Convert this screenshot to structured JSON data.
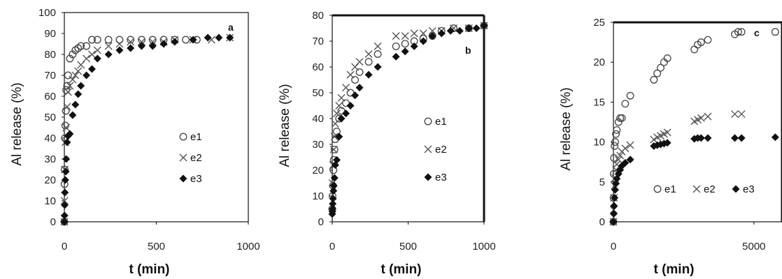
{
  "chart_data": [
    {
      "type": "scatter",
      "panel_label": "a",
      "xlabel": "t (min)",
      "ylabel": "Al release   (%)",
      "xlim": [
        0,
        1000
      ],
      "ylim": [
        0,
        100
      ],
      "xticks": [
        "0",
        "500",
        "1000"
      ],
      "yticks": [
        "0",
        "10",
        "20",
        "30",
        "40",
        "50",
        "60",
        "70",
        "80",
        "90",
        "100"
      ],
      "legend_position": "right-middle",
      "series": [
        {
          "name": "e1",
          "marker": "circle",
          "x": [
            0,
            1,
            2,
            3,
            5,
            8,
            10,
            15,
            20,
            30,
            45,
            60,
            75,
            90,
            120,
            150,
            180,
            240,
            300,
            360,
            420,
            480,
            540,
            600,
            660,
            720
          ],
          "y": [
            0,
            18,
            25,
            40,
            46,
            53,
            63,
            65,
            70,
            78,
            80,
            82,
            83,
            84,
            84,
            87,
            87,
            87,
            87,
            87,
            87,
            87,
            87,
            87,
            87,
            87
          ]
        },
        {
          "name": "e2",
          "marker": "x",
          "x": [
            0,
            1,
            2,
            5,
            10,
            15,
            20,
            30,
            45,
            60,
            75,
            90,
            120,
            150,
            180,
            240,
            300,
            360,
            420,
            480,
            540,
            600,
            700,
            800,
            900
          ],
          "y": [
            0,
            10,
            25,
            38,
            45,
            55,
            62,
            65,
            68,
            70,
            72,
            75,
            78,
            80,
            82,
            84,
            85,
            86,
            86,
            86,
            86,
            87,
            87,
            87,
            88
          ]
        },
        {
          "name": "e3",
          "marker": "diamond",
          "x": [
            0,
            1,
            2,
            3,
            5,
            8,
            10,
            15,
            20,
            30,
            45,
            60,
            75,
            90,
            120,
            150,
            180,
            240,
            300,
            360,
            420,
            480,
            540,
            600,
            700,
            780,
            840,
            900
          ],
          "y": [
            0,
            3,
            8,
            14,
            20,
            24,
            30,
            38,
            41,
            42,
            51,
            56,
            61,
            65,
            70,
            73,
            78,
            80,
            82,
            83,
            84,
            84,
            85,
            86,
            87,
            88,
            88,
            88
          ]
        }
      ]
    },
    {
      "type": "scatter",
      "panel_label": "b",
      "xlabel": "t (min)",
      "ylabel": "Al release   (%)",
      "xlim": [
        0,
        1000
      ],
      "ylim": [
        0,
        80
      ],
      "xticks": [
        "0",
        "500",
        "1000"
      ],
      "yticks": [
        "0",
        "10",
        "20",
        "30",
        "40",
        "50",
        "60",
        "70",
        "80"
      ],
      "legend_position": "right-middle",
      "series": [
        {
          "name": "e1",
          "marker": "circle",
          "x": [
            0,
            2,
            5,
            8,
            10,
            15,
            20,
            30,
            45,
            60,
            90,
            120,
            150,
            180,
            240,
            300,
            420,
            480,
            540,
            600,
            660,
            720,
            800,
            900,
            1000
          ],
          "y": [
            5,
            10,
            14,
            20,
            24,
            28,
            32,
            35,
            40,
            43,
            46,
            50,
            55,
            58,
            62,
            65,
            68,
            69,
            70,
            71,
            72,
            74,
            75,
            75,
            76
          ]
        },
        {
          "name": "e2",
          "marker": "x",
          "x": [
            2,
            5,
            10,
            15,
            20,
            30,
            45,
            60,
            90,
            120,
            150,
            180,
            240,
            300,
            420,
            480,
            540,
            600,
            660,
            720,
            800,
            900,
            1000
          ],
          "y": [
            15,
            22,
            28,
            33,
            38,
            42,
            45,
            48,
            52,
            57,
            60,
            62,
            65,
            68,
            72,
            72,
            73,
            73,
            74,
            74,
            75,
            75,
            76
          ]
        },
        {
          "name": "e3",
          "marker": "diamond",
          "x": [
            0,
            1,
            2,
            3,
            5,
            8,
            10,
            15,
            20,
            30,
            45,
            60,
            90,
            120,
            150,
            180,
            240,
            300,
            420,
            480,
            540,
            600,
            660,
            720,
            780,
            840,
            900,
            950,
            1000
          ],
          "y": [
            3,
            4,
            5,
            7,
            9,
            12,
            14,
            17,
            22,
            24,
            33,
            40,
            42,
            45,
            49,
            52,
            57,
            60,
            64,
            66,
            68,
            70,
            72,
            73,
            74,
            74,
            75,
            75,
            76
          ]
        }
      ]
    },
    {
      "type": "scatter",
      "panel_label": "c",
      "xlabel": "t (min)",
      "ylabel": "Al release   (%)",
      "xlim": [
        0,
        6000
      ],
      "ylim": [
        0,
        25
      ],
      "xticks": [
        "0",
        "5000"
      ],
      "yticks": [
        "0",
        "5",
        "10",
        "15",
        "20",
        "25"
      ],
      "legend_position": "bottom-right",
      "series": [
        {
          "name": "e1",
          "marker": "circle",
          "x": [
            0,
            5,
            10,
            20,
            40,
            60,
            90,
            120,
            180,
            240,
            300,
            420,
            600,
            1440,
            1560,
            1680,
            1800,
            1920,
            2880,
            3000,
            3120,
            3360,
            4320,
            4440,
            4560,
            5760,
            6000
          ],
          "y": [
            0,
            3,
            6,
            8,
            9.5,
            10,
            11,
            11.5,
            12.5,
            13,
            13,
            14.8,
            15.8,
            17.8,
            18.6,
            19.3,
            20,
            20.5,
            21.6,
            22.2,
            22.5,
            22.8,
            23.5,
            23.8,
            23.8,
            23.8,
            23.8
          ]
        },
        {
          "name": "e2",
          "marker": "x",
          "x": [
            0,
            10,
            20,
            40,
            60,
            90,
            120,
            180,
            240,
            300,
            420,
            600,
            1440,
            1560,
            1680,
            1800,
            1920,
            2880,
            3000,
            3120,
            3360,
            4320,
            4560,
            6000
          ],
          "y": [
            0,
            1.5,
            3,
            4.5,
            5.5,
            6.5,
            7.2,
            7.8,
            8.3,
            8.8,
            9.2,
            9.6,
            10.3,
            10.6,
            10.8,
            11,
            11.2,
            12.6,
            12.8,
            13,
            13.2,
            13.5,
            13.5,
            13.7
          ]
        },
        {
          "name": "e3",
          "marker": "diamond",
          "x": [
            0,
            10,
            20,
            40,
            60,
            90,
            120,
            180,
            240,
            300,
            420,
            600,
            1440,
            1560,
            1680,
            1800,
            1920,
            2880,
            3000,
            3120,
            3360,
            4320,
            4560,
            5760,
            6000
          ],
          "y": [
            0,
            1,
            2,
            3,
            4,
            4.8,
            5.4,
            6,
            6.5,
            7,
            7.4,
            7.8,
            9.5,
            9.6,
            9.7,
            9.8,
            9.9,
            10.4,
            10.5,
            10.5,
            10.5,
            10.5,
            10.5,
            10.6,
            10.6
          ]
        }
      ]
    }
  ]
}
